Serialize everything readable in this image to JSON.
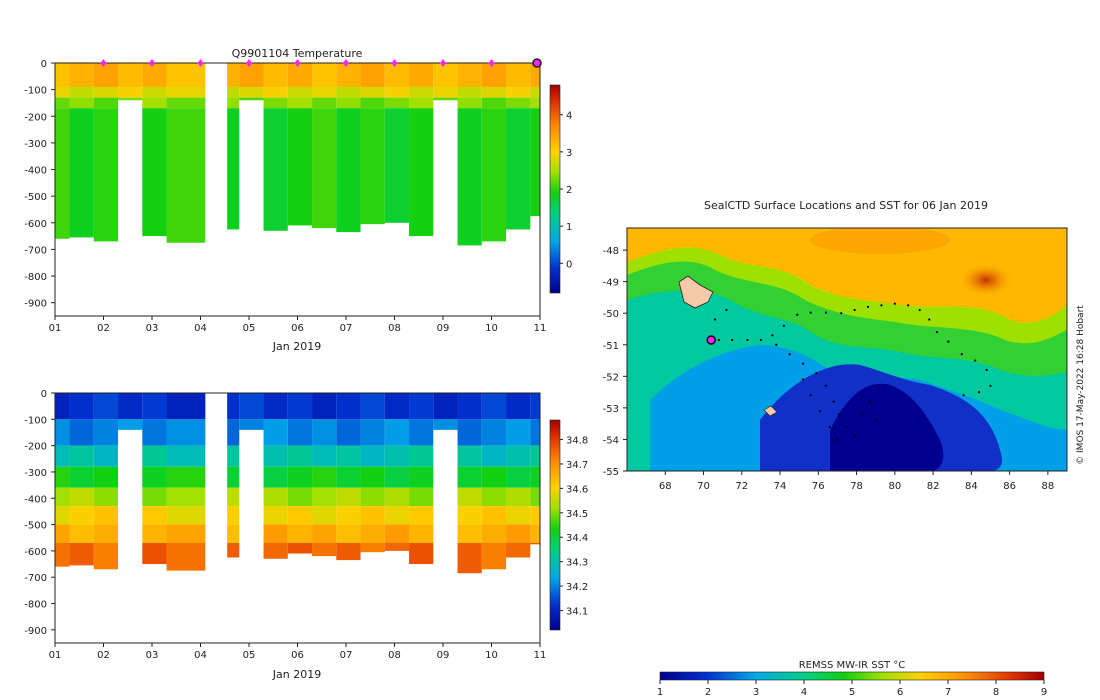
{
  "chart_data": [
    {
      "type": "heatmap",
      "title": "Q9901104  Temperature",
      "xlabel": "Jan 2019",
      "ylabel": "",
      "xlim": [
        1,
        11
      ],
      "ylim": [
        -950,
        0
      ],
      "x_ticks": [
        "01",
        "02",
        "03",
        "04",
        "05",
        "06",
        "07",
        "08",
        "09",
        "10",
        "11"
      ],
      "y_ticks": [
        "0",
        "-100",
        "-200",
        "-300",
        "-400",
        "-500",
        "-600",
        "-700",
        "-800",
        "-900"
      ],
      "colorbar": {
        "min": -0.8,
        "max": 4.8,
        "ticks": [
          "0",
          "1",
          "2",
          "3",
          "4"
        ]
      },
      "profile_markers": [
        2,
        3,
        4,
        5,
        6,
        7,
        8,
        9,
        10
      ],
      "current_marker": 11,
      "profiles": [
        {
          "x0": 1.0,
          "x1": 1.3,
          "bottom": -660
        },
        {
          "x0": 1.3,
          "x1": 1.8,
          "bottom": -655
        },
        {
          "x0": 1.8,
          "x1": 2.3,
          "bottom": -670
        },
        {
          "x0": 2.3,
          "x1": 2.8,
          "bottom": -140,
          "short": true
        },
        {
          "x0": 2.8,
          "x1": 3.3,
          "bottom": -650
        },
        {
          "x0": 3.3,
          "x1": 4.1,
          "bottom": -675
        },
        {
          "x0": 4.55,
          "x1": 4.8,
          "bottom": -625
        },
        {
          "x0": 4.8,
          "x1": 5.3,
          "bottom": -140,
          "short": true
        },
        {
          "x0": 5.3,
          "x1": 5.8,
          "bottom": -630
        },
        {
          "x0": 5.8,
          "x1": 6.3,
          "bottom": -610
        },
        {
          "x0": 6.3,
          "x1": 6.8,
          "bottom": -620
        },
        {
          "x0": 6.8,
          "x1": 7.3,
          "bottom": -635
        },
        {
          "x0": 7.3,
          "x1": 7.8,
          "bottom": -605
        },
        {
          "x0": 7.8,
          "x1": 8.3,
          "bottom": -600
        },
        {
          "x0": 8.3,
          "x1": 8.8,
          "bottom": -650
        },
        {
          "x0": 8.8,
          "x1": 9.3,
          "bottom": -140,
          "short": true
        },
        {
          "x0": 9.3,
          "x1": 9.8,
          "bottom": -685
        },
        {
          "x0": 9.8,
          "x1": 10.3,
          "bottom": -670
        },
        {
          "x0": 10.3,
          "x1": 10.8,
          "bottom": -625
        },
        {
          "x0": 10.8,
          "x1": 11.0,
          "bottom": -575
        }
      ],
      "value_layers": [
        {
          "from": 0,
          "to": -90,
          "value": 3.3
        },
        {
          "from": -90,
          "to": -130,
          "value": 2.8
        },
        {
          "from": -130,
          "to": -170,
          "value": 2.3
        },
        {
          "from": -170,
          "to": -950,
          "value": 1.9
        }
      ]
    },
    {
      "type": "heatmap",
      "title": "",
      "xlabel": "Jan 2019",
      "ylabel": "",
      "xlim": [
        1,
        11
      ],
      "ylim": [
        -950,
        0
      ],
      "x_ticks": [
        "01",
        "02",
        "03",
        "04",
        "05",
        "06",
        "07",
        "08",
        "09",
        "10",
        "11"
      ],
      "y_ticks": [
        "0",
        "-100",
        "-200",
        "-300",
        "-400",
        "-500",
        "-600",
        "-700",
        "-800",
        "-900"
      ],
      "colorbar": {
        "min": 34.02,
        "max": 34.88,
        "ticks": [
          "34.1",
          "34.2",
          "34.3",
          "34.4",
          "34.5",
          "34.6",
          "34.7",
          "34.8"
        ]
      },
      "value_layers": [
        {
          "from": 0,
          "to": -100,
          "value": 34.12
        },
        {
          "from": -100,
          "to": -200,
          "value": 34.2
        },
        {
          "from": -200,
          "to": -280,
          "value": 34.3
        },
        {
          "from": -280,
          "to": -360,
          "value": 34.42
        },
        {
          "from": -360,
          "to": -430,
          "value": 34.52
        },
        {
          "from": -430,
          "to": -500,
          "value": 34.6
        },
        {
          "from": -500,
          "to": -570,
          "value": 34.66
        },
        {
          "from": -570,
          "to": -950,
          "value": 34.75
        }
      ]
    },
    {
      "type": "heatmap",
      "title": "SealCTD Surface Locations and SST for 06 Jan 2019",
      "xlabel": "",
      "ylabel": "",
      "xlim": [
        66,
        89
      ],
      "ylim": [
        -55,
        -47.3
      ],
      "x_ticks": [
        "68",
        "70",
        "72",
        "74",
        "76",
        "78",
        "80",
        "82",
        "84",
        "86",
        "88"
      ],
      "y_ticks": [
        "-48",
        "-49",
        "-50",
        "-51",
        "-52",
        "-53",
        "-54",
        "-55"
      ],
      "colorbar": {
        "label": "REMSS MW-IR SST °C",
        "min": 1,
        "max": 9,
        "ticks": [
          "1",
          "2",
          "3",
          "4",
          "5",
          "6",
          "7",
          "8",
          "9"
        ]
      },
      "current_position": {
        "lon": 70.4,
        "lat": -50.85
      },
      "track": [
        [
          70.8,
          -50.85
        ],
        [
          71.5,
          -50.85
        ],
        [
          72.3,
          -50.85
        ],
        [
          73.0,
          -50.85
        ],
        [
          73.6,
          -50.7
        ],
        [
          74.2,
          -50.4
        ],
        [
          74.9,
          -50.05
        ],
        [
          75.6,
          -49.98
        ],
        [
          76.4,
          -49.98
        ],
        [
          77.2,
          -50.0
        ],
        [
          77.9,
          -49.9
        ],
        [
          78.6,
          -49.8
        ],
        [
          79.3,
          -49.75
        ],
        [
          80.0,
          -49.7
        ],
        [
          80.7,
          -49.75
        ],
        [
          81.3,
          -49.9
        ],
        [
          81.8,
          -50.2
        ],
        [
          82.2,
          -50.6
        ],
        [
          82.8,
          -50.9
        ],
        [
          83.5,
          -51.3
        ],
        [
          84.2,
          -51.5
        ],
        [
          84.8,
          -51.8
        ],
        [
          85.0,
          -52.3
        ],
        [
          84.4,
          -52.5
        ],
        [
          83.6,
          -52.6
        ],
        [
          73.8,
          -51.0
        ],
        [
          74.5,
          -51.3
        ],
        [
          75.2,
          -51.6
        ],
        [
          75.9,
          -51.9
        ],
        [
          76.4,
          -52.3
        ],
        [
          76.8,
          -52.8
        ],
        [
          77.1,
          -53.2
        ],
        [
          77.5,
          -53.6
        ],
        [
          77.9,
          -53.9
        ],
        [
          75.2,
          -52.1
        ],
        [
          75.6,
          -52.6
        ],
        [
          76.1,
          -53.1
        ],
        [
          76.6,
          -53.6
        ],
        [
          77.0,
          -54.0
        ],
        [
          78.3,
          -53.2
        ],
        [
          79.0,
          -53.4
        ],
        [
          78.7,
          -52.8
        ],
        [
          71.2,
          -49.9
        ],
        [
          70.6,
          -50.2
        ]
      ]
    }
  ],
  "side_label": "© IMOS 17-May-2022 16:28 Hobart",
  "colors": {
    "background": "#ffffff",
    "marker": "#ff22ff",
    "current_marker": "#222222",
    "track": "#000000"
  }
}
